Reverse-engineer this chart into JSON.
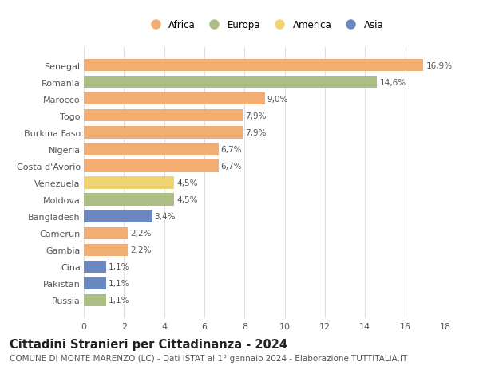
{
  "countries": [
    "Russia",
    "Pakistan",
    "Cina",
    "Gambia",
    "Camerun",
    "Bangladesh",
    "Moldova",
    "Venezuela",
    "Costa d'Avorio",
    "Nigeria",
    "Burkina Faso",
    "Togo",
    "Marocco",
    "Romania",
    "Senegal"
  ],
  "values": [
    1.1,
    1.1,
    1.1,
    2.2,
    2.2,
    3.4,
    4.5,
    4.5,
    6.7,
    6.7,
    7.9,
    7.9,
    9.0,
    14.6,
    16.9
  ],
  "labels": [
    "1,1%",
    "1,1%",
    "1,1%",
    "2,2%",
    "2,2%",
    "3,4%",
    "4,5%",
    "4,5%",
    "6,7%",
    "6,7%",
    "7,9%",
    "7,9%",
    "9,0%",
    "14,6%",
    "16,9%"
  ],
  "continents": [
    "Europa",
    "Asia",
    "Asia",
    "Africa",
    "Africa",
    "Asia",
    "Europa",
    "America",
    "Africa",
    "Africa",
    "Africa",
    "Africa",
    "Africa",
    "Europa",
    "Africa"
  ],
  "continent_colors": {
    "Africa": "#F2AE72",
    "Europa": "#ABBE84",
    "America": "#F0D472",
    "Asia": "#6B88C0"
  },
  "legend_order": [
    "Africa",
    "Europa",
    "America",
    "Asia"
  ],
  "title": "Cittadini Stranieri per Cittadinanza - 2024",
  "subtitle": "COMUNE DI MONTE MARENZO (LC) - Dati ISTAT al 1° gennaio 2024 - Elaborazione TUTTITALIA.IT",
  "xlim": [
    0,
    18
  ],
  "xticks": [
    0,
    2,
    4,
    6,
    8,
    10,
    12,
    14,
    16,
    18
  ],
  "background_color": "#ffffff",
  "grid_color": "#e0e0e0",
  "bar_height": 0.72,
  "title_fontsize": 10.5,
  "subtitle_fontsize": 7.5,
  "label_fontsize": 7.5,
  "ytick_fontsize": 8,
  "xtick_fontsize": 8,
  "legend_fontsize": 8.5
}
